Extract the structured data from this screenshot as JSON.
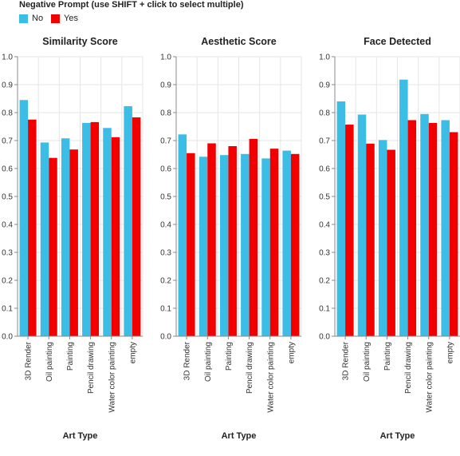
{
  "legend": {
    "title": "Negative Prompt (use SHIFT + click to select multiple)",
    "items": [
      {
        "label": "No",
        "color": "#3cbde6"
      },
      {
        "label": "Yes",
        "color": "#f20000"
      }
    ]
  },
  "chart_data": [
    {
      "type": "bar",
      "title": "Similarity Score",
      "xlabel": "Art Type",
      "ylabel": "",
      "ylim": [
        0,
        1.0
      ],
      "yticks": [
        "0.0",
        "0.1",
        "0.2",
        "0.3",
        "0.4",
        "0.5",
        "0.6",
        "0.7",
        "0.8",
        "0.9",
        "1.0"
      ],
      "categories": [
        "3D Render",
        "Oil painting",
        "Painting",
        "Pencil drawing",
        "Water color painting",
        "empty"
      ],
      "series": [
        {
          "name": "No",
          "values": [
            0.845,
            0.693,
            0.708,
            0.763,
            0.745,
            0.823
          ]
        },
        {
          "name": "Yes",
          "values": [
            0.775,
            0.638,
            0.668,
            0.766,
            0.712,
            0.783
          ]
        }
      ]
    },
    {
      "type": "bar",
      "title": "Aesthetic Score",
      "xlabel": "Art Type",
      "ylabel": "",
      "ylim": [
        0,
        1.0
      ],
      "yticks": [
        "0.0",
        "0.1",
        "0.2",
        "0.3",
        "0.4",
        "0.5",
        "0.6",
        "0.7",
        "0.8",
        "0.9",
        "1.0"
      ],
      "categories": [
        "3D Render",
        "Oil painting",
        "Painting",
        "Pencil drawing",
        "Water color painting",
        "empty"
      ],
      "series": [
        {
          "name": "No",
          "values": [
            0.722,
            0.642,
            0.648,
            0.652,
            0.636,
            0.664
          ]
        },
        {
          "name": "Yes",
          "values": [
            0.655,
            0.69,
            0.68,
            0.706,
            0.671,
            0.652
          ]
        }
      ]
    },
    {
      "type": "bar",
      "title": "Face Detected",
      "xlabel": "Art Type",
      "ylabel": "",
      "ylim": [
        0,
        1.0
      ],
      "yticks": [
        "0.0",
        "0.1",
        "0.2",
        "0.3",
        "0.4",
        "0.5",
        "0.6",
        "0.7",
        "0.8",
        "0.9",
        "1.0"
      ],
      "categories": [
        "3D Render",
        "Oil painting",
        "Painting",
        "Pencil drawing",
        "Water color painting",
        "empty"
      ],
      "series": [
        {
          "name": "No",
          "values": [
            0.84,
            0.793,
            0.702,
            0.918,
            0.795,
            0.773
          ]
        },
        {
          "name": "Yes",
          "values": [
            0.757,
            0.689,
            0.667,
            0.773,
            0.763,
            0.73
          ]
        }
      ]
    }
  ]
}
